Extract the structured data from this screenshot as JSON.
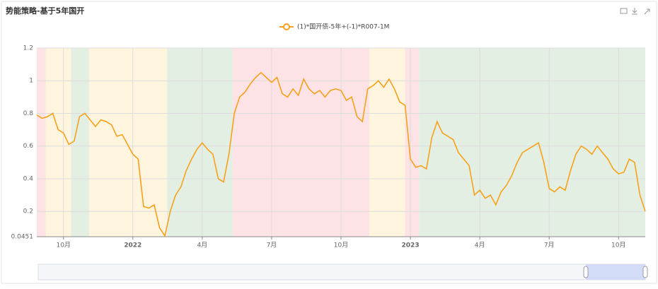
{
  "chart_data": {
    "type": "line",
    "title": "势能策略-基于5年国开",
    "series": [
      {
        "name": "(1)*国开债-5年+(-1)*R007-1M",
        "color": "#f7a11a",
        "values": [
          0.79,
          0.77,
          0.78,
          0.8,
          0.7,
          0.68,
          0.61,
          0.63,
          0.78,
          0.8,
          0.76,
          0.72,
          0.76,
          0.75,
          0.73,
          0.66,
          0.67,
          0.61,
          0.55,
          0.52,
          0.23,
          0.22,
          0.24,
          0.1,
          0.05,
          0.2,
          0.3,
          0.35,
          0.45,
          0.52,
          0.58,
          0.62,
          0.58,
          0.55,
          0.4,
          0.38,
          0.55,
          0.8,
          0.9,
          0.93,
          0.98,
          1.02,
          1.05,
          1.02,
          0.99,
          1.02,
          0.92,
          0.9,
          0.95,
          0.91,
          1.01,
          0.95,
          0.92,
          0.94,
          0.9,
          0.94,
          0.95,
          0.94,
          0.88,
          0.9,
          0.78,
          0.75,
          0.95,
          0.97,
          1.0,
          0.96,
          1.01,
          0.95,
          0.87,
          0.85,
          0.52,
          0.47,
          0.48,
          0.46,
          0.65,
          0.75,
          0.68,
          0.66,
          0.64,
          0.56,
          0.52,
          0.48,
          0.3,
          0.33,
          0.28,
          0.3,
          0.24,
          0.32,
          0.36,
          0.42,
          0.5,
          0.56,
          0.58,
          0.6,
          0.62,
          0.5,
          0.34,
          0.32,
          0.35,
          0.33,
          0.45,
          0.55,
          0.6,
          0.58,
          0.55,
          0.6,
          0.56,
          0.52,
          0.46,
          0.43,
          0.44,
          0.52,
          0.5,
          0.3,
          0.2
        ]
      }
    ],
    "xlim": [
      0,
      114
    ],
    "xticks": [
      {
        "value": 5,
        "label": "10月"
      },
      {
        "value": 18,
        "label": "2022"
      },
      {
        "value": 31,
        "label": "4月"
      },
      {
        "value": 44,
        "label": "7月"
      },
      {
        "value": 57,
        "label": "10月"
      },
      {
        "value": 70,
        "label": "2023"
      },
      {
        "value": 83,
        "label": "4月"
      },
      {
        "value": 96,
        "label": "7月"
      },
      {
        "value": 109,
        "label": "10月"
      }
    ],
    "ylim": [
      0.0451,
      1.2
    ],
    "yticks": [
      0.0451,
      0.2,
      0.4,
      0.6,
      0.8,
      1,
      1.2
    ],
    "grid": true,
    "bands": [
      {
        "start": 0,
        "end": 1.7,
        "color": "#fde3e5"
      },
      {
        "start": 1.7,
        "end": 6.4,
        "color": "#fff4de"
      },
      {
        "start": 6.4,
        "end": 9.8,
        "color": "#e4efe3"
      },
      {
        "start": 9.8,
        "end": 24.4,
        "color": "#fff4de"
      },
      {
        "start": 24.4,
        "end": 36.7,
        "color": "#e4efe3"
      },
      {
        "start": 36.7,
        "end": 62.3,
        "color": "#fde3e5"
      },
      {
        "start": 62.3,
        "end": 69,
        "color": "#fff4de"
      },
      {
        "start": 69,
        "end": 71.6,
        "color": "#fde3e5"
      },
      {
        "start": 71.6,
        "end": 114,
        "color": "#e4efe3"
      }
    ]
  }
}
